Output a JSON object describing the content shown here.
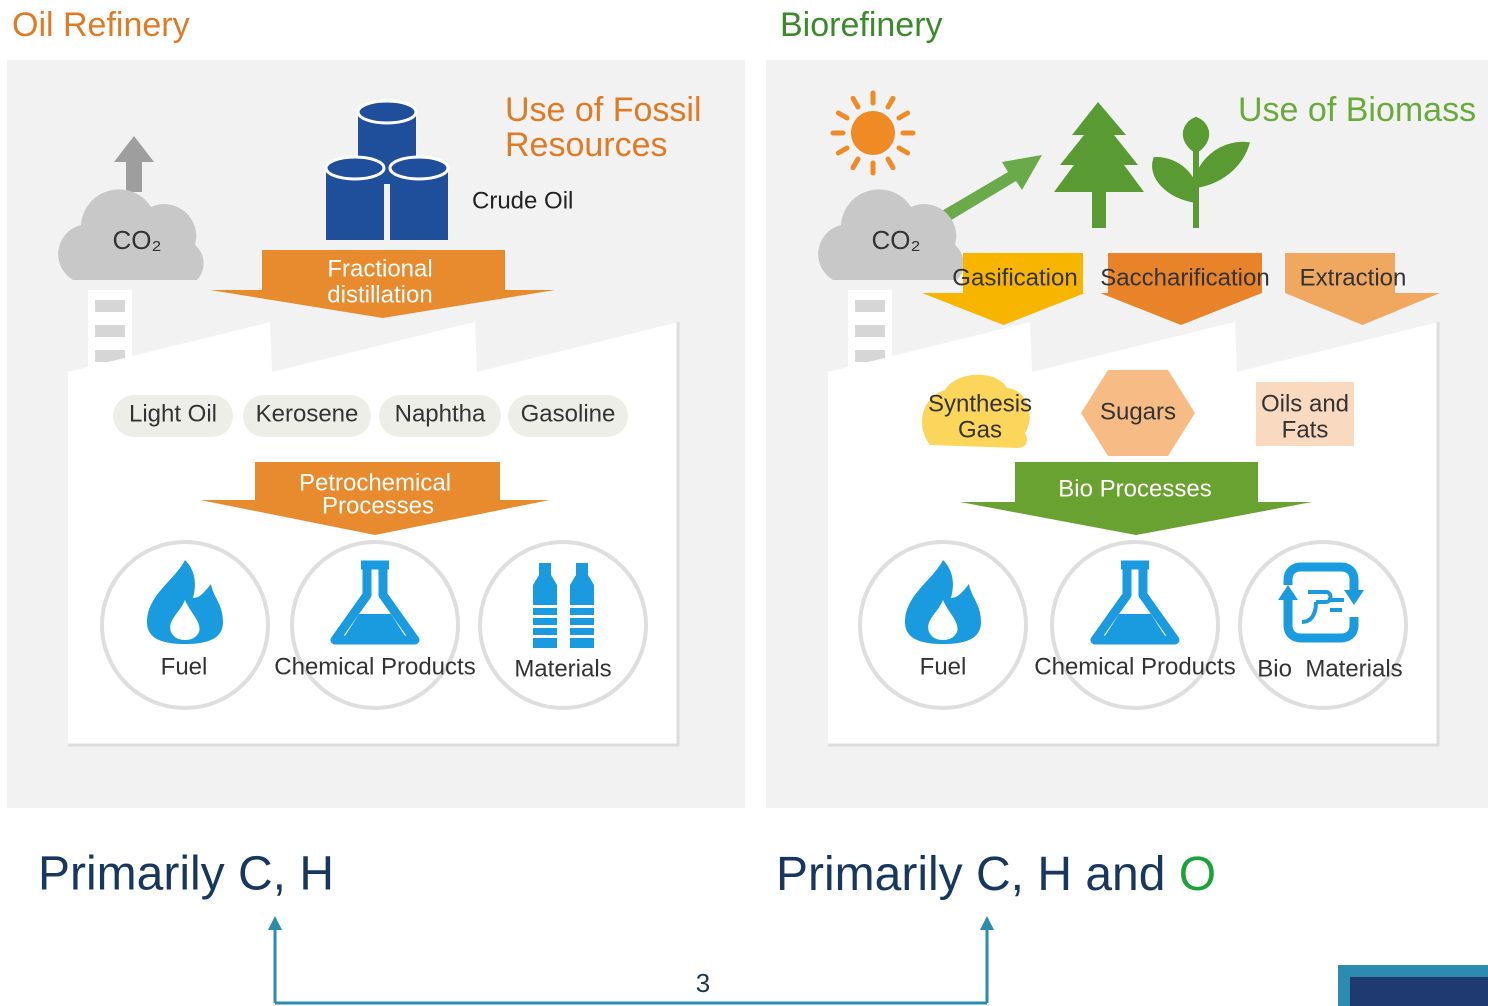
{
  "oil_refinery": {
    "title": "Oil Refinery",
    "resource_label": [
      "Use of Fossil",
      "Resources"
    ],
    "feedstock": "Crude Oil",
    "emission": "CO₂",
    "separation": [
      "Fractional",
      "distillation"
    ],
    "fractions": [
      "Light Oil",
      "Kerosene",
      "Naphtha",
      "Gasoline"
    ],
    "conversion": [
      "Petrochemical",
      "Processes"
    ],
    "outputs": [
      "Fuel",
      "Chemical Products",
      "Materials"
    ]
  },
  "biorefinery": {
    "title": "Biorefinery",
    "resource_label": "Use of Biomass",
    "emission": "CO₂",
    "pretreatments": [
      "Gasification",
      "Saccharification",
      "Extraction"
    ],
    "intermediates": [
      [
        "Synthesis",
        "Gas"
      ],
      [
        "Sugars"
      ],
      [
        "Oils and",
        "Fats"
      ]
    ],
    "conversion": "Bio Processes",
    "outputs": [
      "Fuel",
      "Chemical Products",
      "Bio  Materials"
    ]
  },
  "comparison": {
    "left": "Primarily C, H",
    "right": [
      "Primarily C, H and ",
      "O"
    ]
  },
  "page_number": "3"
}
